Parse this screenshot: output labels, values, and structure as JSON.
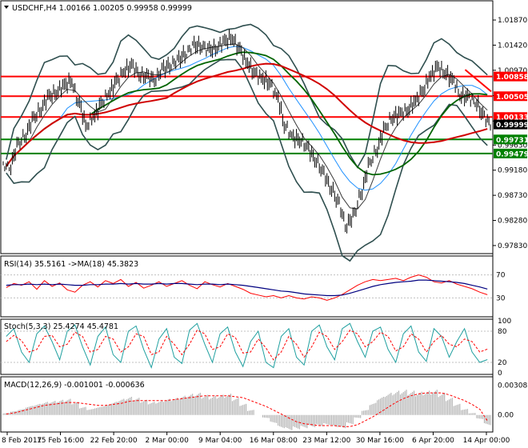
{
  "chart_data": [
    {
      "type": "line",
      "panel": "price",
      "title": "USDCHF,H4  1.00166 1.00205 0.99958 0.99999",
      "header": {
        "symbol": "USDCHF,H4",
        "ohlc": "1.00166 1.00205 0.99958 0.99999"
      },
      "x_labels": [
        "8 Feb 2017",
        "15 Feb 16:00",
        "22 Feb 20:00",
        "2 Mar 00:00",
        "9 Mar 04:00",
        "16 Mar 08:00",
        "23 Mar 12:00",
        "30 Mar 16:00",
        "6 Apr 20:00",
        "14 Apr 00:00"
      ],
      "ylim": [
        0.977,
        1.022
      ],
      "y_ticks": [
        "1.01870",
        "1.01420",
        "1.00970",
        "1.00515",
        "1.00060",
        "0.99630",
        "0.99180",
        "0.98730",
        "0.98280",
        "0.97830"
      ],
      "close_series": [
        0.9925,
        0.9962,
        0.9982,
        1.0008,
        1.0028,
        1.0048,
        1.0058,
        1.0068,
        1.0078,
        1.0038,
        0.9998,
        1.0015,
        1.0038,
        1.0058,
        1.0078,
        1.0098,
        1.0104,
        1.009,
        1.0084,
        1.0081,
        1.0098,
        1.0108,
        1.0114,
        1.0128,
        1.014,
        1.0143,
        1.0132,
        1.0138,
        1.0147,
        1.0156,
        1.0135,
        1.0112,
        1.0092,
        1.0082,
        1.0074,
        1.0048,
        0.9998,
        0.9976,
        0.9973,
        0.9956,
        0.9938,
        0.9912,
        0.9888,
        0.9858,
        0.982,
        0.9836,
        0.988,
        0.9926,
        0.9956,
        0.999,
        1.0013,
        1.0018,
        1.0026,
        1.004,
        1.006,
        1.0086,
        1.0103,
        1.0092,
        1.0078,
        1.0052,
        1.0048,
        1.004,
        1.0014,
        0.99999
      ],
      "levels": [
        {
          "value": "1.00858",
          "color": "#ff0000"
        },
        {
          "value": "1.00505",
          "color": "#ff0000"
        },
        {
          "value": "1.00133",
          "color": "#ff0000"
        },
        {
          "value": "0.99731",
          "color": "#008000"
        },
        {
          "value": "0.99479",
          "color": "#008000"
        }
      ],
      "current_price": "0.99999",
      "trendline": {
        "color": "#ff0000",
        "start": [
          "6 Apr 20:00",
          1.0098
        ],
        "end": [
          "14 Apr 00:00",
          1.0059
        ]
      },
      "series_colors": {
        "price": "#000000",
        "bollinger": "#2f4f4f",
        "ma_fast": "#1e90ff",
        "ma_mid": "#006400",
        "ma_slow": "#d00000"
      }
    },
    {
      "type": "line",
      "panel": "rsi",
      "header": "RSI(14) 35.5161  ->MA(18) 45.3823",
      "ylim": [
        0,
        100
      ],
      "y_ticks": [
        "70",
        "30"
      ],
      "rsi": [
        48,
        55,
        52,
        58,
        45,
        60,
        50,
        56,
        44,
        40,
        52,
        58,
        49,
        60,
        55,
        62,
        50,
        57,
        47,
        52,
        58,
        50,
        55,
        60,
        52,
        46,
        58,
        53,
        49,
        55,
        50,
        45,
        38,
        35,
        32,
        34,
        30,
        34,
        30,
        28,
        32,
        30,
        26,
        30,
        36,
        44,
        52,
        58,
        62,
        60,
        62,
        64,
        60,
        66,
        70,
        66,
        58,
        56,
        60,
        54,
        50,
        46,
        40,
        35.5
      ],
      "ma": [
        52,
        53,
        53,
        54,
        53,
        54,
        53,
        54,
        53,
        52,
        52,
        53,
        53,
        54,
        54,
        55,
        54,
        55,
        54,
        54,
        55,
        54,
        55,
        55,
        54,
        53,
        54,
        54,
        53,
        54,
        53,
        52,
        50,
        48,
        46,
        44,
        42,
        41,
        39,
        37,
        36,
        35,
        34,
        34,
        35,
        38,
        42,
        46,
        50,
        53,
        55,
        57,
        58,
        59,
        61,
        61,
        60,
        59,
        58,
        57,
        55,
        52,
        49,
        45.4
      ]
    },
    {
      "type": "line",
      "panel": "stochastic",
      "header": "Stoch(5,3,3) 25.4274 45.4781",
      "ylim": [
        0,
        100
      ],
      "y_ticks": [
        "100",
        "80",
        "20",
        "0"
      ],
      "k": [
        70,
        85,
        40,
        20,
        75,
        90,
        60,
        25,
        80,
        92,
        50,
        15,
        70,
        88,
        35,
        20,
        80,
        90,
        45,
        10,
        65,
        85,
        30,
        18,
        82,
        95,
        55,
        20,
        75,
        88,
        40,
        12,
        60,
        80,
        20,
        10,
        70,
        85,
        30,
        15,
        80,
        92,
        50,
        25,
        85,
        95,
        60,
        30,
        80,
        88,
        45,
        20,
        75,
        90,
        40,
        22,
        85,
        70,
        30,
        60,
        85,
        40,
        20,
        25.4
      ],
      "d": [
        60,
        72,
        62,
        40,
        45,
        70,
        72,
        50,
        55,
        78,
        70,
        40,
        45,
        70,
        65,
        40,
        50,
        75,
        70,
        35,
        40,
        70,
        55,
        35,
        55,
        82,
        75,
        45,
        50,
        75,
        68,
        38,
        40,
        65,
        48,
        25,
        40,
        70,
        55,
        30,
        50,
        78,
        70,
        45,
        60,
        82,
        75,
        50,
        60,
        78,
        70,
        42,
        50,
        75,
        65,
        40,
        60,
        72,
        55,
        50,
        65,
        60,
        40,
        45.5
      ]
    },
    {
      "type": "bar",
      "panel": "macd",
      "header": "MACD(12,26,9) -0.001001 -0.000636",
      "ylim": [
        -0.0016,
        0.0038
      ],
      "y_ticks": [
        "0.003081",
        "0.00"
      ],
      "histogram": [
        0.0002,
        0.0004,
        0.0006,
        0.0009,
        0.0011,
        0.0013,
        0.0014,
        0.0015,
        0.0016,
        0.0013,
        0.0008,
        0.0006,
        0.0008,
        0.001,
        0.0013,
        0.0016,
        0.0018,
        0.0017,
        0.0015,
        0.0013,
        0.0014,
        0.0016,
        0.0017,
        0.0019,
        0.0021,
        0.0022,
        0.002,
        0.0019,
        0.002,
        0.0021,
        0.0017,
        0.0011,
        0.0005,
        0.0,
        -0.0003,
        -0.0008,
        -0.0013,
        -0.0015,
        -0.0014,
        -0.0013,
        -0.0012,
        -0.0011,
        -0.001,
        -0.0012,
        -0.0013,
        -0.0009,
        -0.0003,
        0.0005,
        0.0012,
        0.0018,
        0.0022,
        0.0024,
        0.0025,
        0.0024,
        0.0023,
        0.0024,
        0.0025,
        0.0022,
        0.0017,
        0.0011,
        0.0006,
        0.0002,
        -0.0004,
        -0.001
      ],
      "signal": [
        0.0001,
        0.0002,
        0.0004,
        0.0006,
        0.0008,
        0.001,
        0.0011,
        0.0012,
        0.0013,
        0.0013,
        0.0012,
        0.0011,
        0.001,
        0.001,
        0.0011,
        0.0012,
        0.0014,
        0.0015,
        0.0015,
        0.0015,
        0.0015,
        0.0015,
        0.0016,
        0.0017,
        0.0018,
        0.0019,
        0.002,
        0.002,
        0.002,
        0.002,
        0.0019,
        0.0018,
        0.0015,
        0.0012,
        0.0009,
        0.0005,
        0.0001,
        -0.0003,
        -0.0007,
        -0.0009,
        -0.001,
        -0.0011,
        -0.0011,
        -0.0011,
        -0.0012,
        -0.0012,
        -0.001,
        -0.0006,
        -0.0002,
        0.0003,
        0.0008,
        0.0013,
        0.0017,
        0.002,
        0.0022,
        0.0023,
        0.0023,
        0.0023,
        0.0021,
        0.0018,
        0.0015,
        0.0011,
        0.0006,
        -0.0006
      ]
    }
  ]
}
